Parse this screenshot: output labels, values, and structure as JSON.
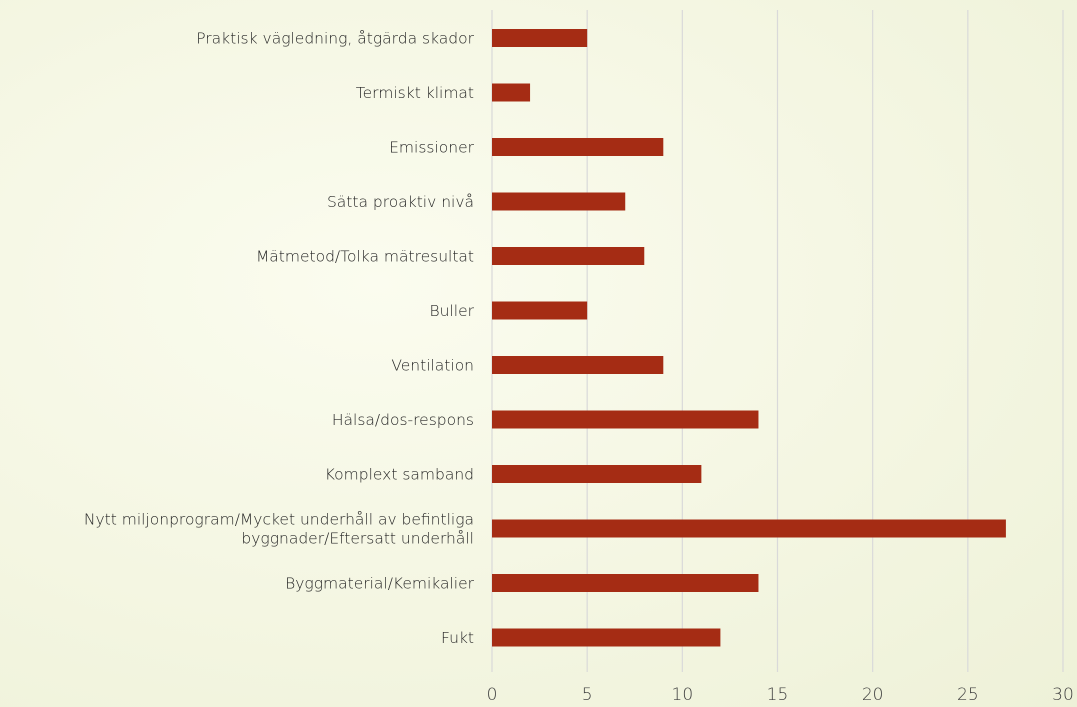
{
  "chart_data": {
    "type": "bar",
    "orientation": "horizontal",
    "categories": [
      "Praktisk vägledning, åtgärda skador",
      "Termiskt klimat",
      "Emissioner",
      "Sätta proaktiv nivå",
      "Mätmetod/Tolka mätresultat",
      "Buller",
      "Ventilation",
      "Hälsa/dos-respons",
      "Komplext samband",
      "Nytt miljonprogram/Mycket underhåll av befintliga byggnader/Eftersatt underhåll",
      "Byggmaterial/Kemikalier",
      "Fukt"
    ],
    "category_lines": [
      [
        "Praktisk vägledning, åtgärda skador"
      ],
      [
        "Termiskt klimat"
      ],
      [
        "Emissioner"
      ],
      [
        "Sätta proaktiv nivå"
      ],
      [
        "Mätmetod/Tolka mätresultat"
      ],
      [
        "Buller"
      ],
      [
        "Ventilation"
      ],
      [
        "Hälsa/dos-respons"
      ],
      [
        "Komplext samband"
      ],
      [
        "Nytt miljonprogram/Mycket underhåll av befintliga",
        "byggnader/Eftersatt underhåll"
      ],
      [
        "Byggmaterial/Kemikalier"
      ],
      [
        "Fukt"
      ]
    ],
    "values": [
      5,
      2,
      9,
      7,
      8,
      5,
      9,
      14,
      11,
      27,
      14,
      12
    ],
    "xlim": [
      0,
      30
    ],
    "ticks": [
      "0",
      "5",
      "10",
      "15",
      "20",
      "25",
      "30"
    ],
    "tick_values": [
      0,
      5,
      10,
      15,
      20,
      25,
      30
    ],
    "grid": "vertical",
    "bar_color": "#a52c14",
    "grid_color": "#d9d9d9",
    "title": "",
    "xlabel": "",
    "ylabel": ""
  }
}
